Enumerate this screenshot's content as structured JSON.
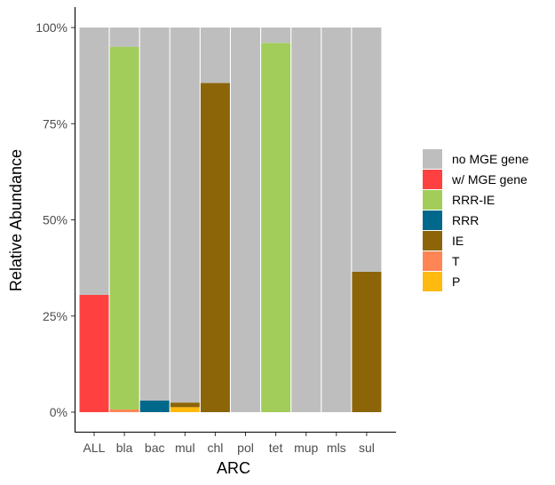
{
  "chart_data": {
    "type": "bar",
    "stacked": true,
    "xlabel": "ARC",
    "ylabel": "Relative Abundance",
    "ylim": [
      0,
      1
    ],
    "yticks": [
      0,
      0.25,
      0.5,
      0.75,
      1
    ],
    "ytick_labels": [
      "0%",
      "25%",
      "50%",
      "75%",
      "100%"
    ],
    "categories": [
      "ALL",
      "bla",
      "bac",
      "mul",
      "chl",
      "pol",
      "tet",
      "mup",
      "mls",
      "sul"
    ],
    "legend_position": "right",
    "series": [
      {
        "name": "P",
        "color": "#FFB90F",
        "values": [
          0,
          0,
          0,
          0.013,
          0,
          0,
          0,
          0,
          0,
          0
        ]
      },
      {
        "name": "T",
        "color": "#FF8654",
        "values": [
          0,
          0.007,
          0,
          0,
          0,
          0,
          0,
          0,
          0,
          0
        ]
      },
      {
        "name": "IE",
        "color": "#8B6508",
        "values": [
          0,
          0,
          0,
          0.012,
          0.856,
          0,
          0,
          0,
          0,
          0.365
        ]
      },
      {
        "name": "RRR",
        "color": "#00688B",
        "values": [
          0,
          0,
          0.03,
          0,
          0,
          0,
          0,
          0,
          0,
          0
        ]
      },
      {
        "name": "RRR-IE",
        "color": "#A2CD5A",
        "values": [
          0,
          0.943,
          0,
          0,
          0,
          0,
          0.96,
          0,
          0,
          0
        ]
      },
      {
        "name": "w/ MGE gene",
        "color": "#FF4040",
        "values": [
          0.305,
          0,
          0,
          0,
          0,
          0,
          0,
          0,
          0,
          0
        ]
      },
      {
        "name": "no MGE gene",
        "color": "#BEBEBE",
        "values": [
          0.695,
          0.05,
          0.97,
          0.975,
          0.144,
          1,
          0.04,
          1,
          1,
          0.635
        ]
      }
    ],
    "legend_order": [
      "no MGE gene",
      "w/ MGE gene",
      "RRR-IE",
      "RRR",
      "IE",
      "T",
      "P"
    ]
  }
}
